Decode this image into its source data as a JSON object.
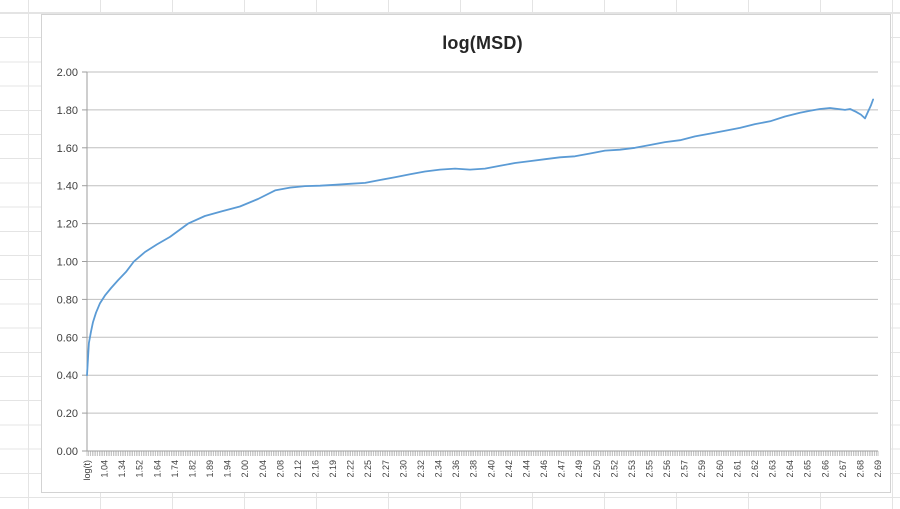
{
  "chart_data": {
    "type": "line",
    "title": "log(MSD)",
    "xlabel": "",
    "ylabel": "",
    "x_tick_labels": [
      "log(t)",
      "1.04",
      "1.34",
      "1.52",
      "1.64",
      "1.74",
      "1.82",
      "1.89",
      "1.94",
      "2.00",
      "2.04",
      "2.08",
      "2.12",
      "2.16",
      "2.19",
      "2.22",
      "2.25",
      "2.27",
      "2.30",
      "2.32",
      "2.34",
      "2.36",
      "2.38",
      "2.40",
      "2.42",
      "2.44",
      "2.46",
      "2.47",
      "2.49",
      "2.50",
      "2.52",
      "2.53",
      "2.55",
      "2.56",
      "2.57",
      "2.59",
      "2.60",
      "2.61",
      "2.62",
      "2.63",
      "2.64",
      "2.65",
      "2.66",
      "2.67",
      "2.68",
      "2.69"
    ],
    "y_tick_labels": [
      "0.00",
      "0.20",
      "0.40",
      "0.60",
      "0.80",
      "1.00",
      "1.20",
      "1.40",
      "1.60",
      "1.80",
      "2.00"
    ],
    "ylim": [
      0,
      2.0
    ],
    "y_step": 0.2,
    "grid": true,
    "legend": "none",
    "minor_x_tick_count": 450,
    "series": [
      {
        "name": "log(MSD)",
        "color": "#5B9BD5",
        "points": [
          [
            0.0,
            0.4
          ],
          [
            0.06,
            0.5
          ],
          [
            0.11,
            0.57
          ],
          [
            0.23,
            0.63
          ],
          [
            0.34,
            0.68
          ],
          [
            0.51,
            0.73
          ],
          [
            0.74,
            0.78
          ],
          [
            1.02,
            0.82
          ],
          [
            1.37,
            0.86
          ],
          [
            1.76,
            0.9
          ],
          [
            2.22,
            0.945
          ],
          [
            2.67,
            1.0
          ],
          [
            3.3,
            1.05
          ],
          [
            3.98,
            1.09
          ],
          [
            4.72,
            1.13
          ],
          [
            5.75,
            1.2
          ],
          [
            6.71,
            1.24
          ],
          [
            7.68,
            1.265
          ],
          [
            8.7,
            1.29
          ],
          [
            9.73,
            1.33
          ],
          [
            10.7,
            1.375
          ],
          [
            11.55,
            1.39
          ],
          [
            12.4,
            1.398
          ],
          [
            13.26,
            1.4
          ],
          [
            14.11,
            1.405
          ],
          [
            14.96,
            1.41
          ],
          [
            15.82,
            1.415
          ],
          [
            16.67,
            1.43
          ],
          [
            17.52,
            1.445
          ],
          [
            18.38,
            1.46
          ],
          [
            19.23,
            1.475
          ],
          [
            20.08,
            1.485
          ],
          [
            20.94,
            1.49
          ],
          [
            21.79,
            1.485
          ],
          [
            22.64,
            1.49
          ],
          [
            23.5,
            1.505
          ],
          [
            24.35,
            1.52
          ],
          [
            25.2,
            1.53
          ],
          [
            26.06,
            1.54
          ],
          [
            26.91,
            1.55
          ],
          [
            27.76,
            1.555
          ],
          [
            28.62,
            1.57
          ],
          [
            29.47,
            1.585
          ],
          [
            30.32,
            1.59
          ],
          [
            31.18,
            1.6
          ],
          [
            32.03,
            1.615
          ],
          [
            32.88,
            1.63
          ],
          [
            33.74,
            1.64
          ],
          [
            34.59,
            1.66
          ],
          [
            35.44,
            1.675
          ],
          [
            36.3,
            1.69
          ],
          [
            37.15,
            1.705
          ],
          [
            38.0,
            1.725
          ],
          [
            38.86,
            1.74
          ],
          [
            39.71,
            1.765
          ],
          [
            40.56,
            1.785
          ],
          [
            41.13,
            1.795
          ],
          [
            41.7,
            1.805
          ],
          [
            42.27,
            1.81
          ],
          [
            42.73,
            1.805
          ],
          [
            43.12,
            1.8
          ],
          [
            43.41,
            1.805
          ],
          [
            43.75,
            1.79
          ],
          [
            44.03,
            1.775
          ],
          [
            44.26,
            1.755
          ],
          [
            44.43,
            1.79
          ],
          [
            44.6,
            1.825
          ],
          [
            44.72,
            1.855
          ]
        ]
      }
    ]
  },
  "colors": {
    "series_line": "#5B9BD5",
    "gridline": "#BFBFBF",
    "axis": "#9E9E9E",
    "tick_label": "#404040",
    "title": "#262626",
    "chart_border": "#d3d3d3",
    "sheet_gridline": "#e4e4e4"
  }
}
